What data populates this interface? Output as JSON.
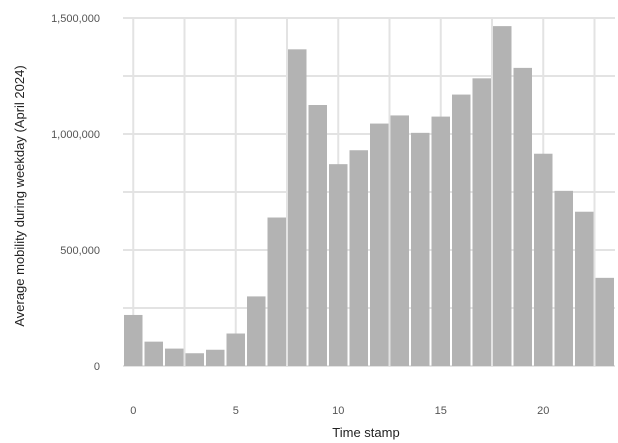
{
  "chart_data": {
    "type": "bar",
    "title": "",
    "xlabel": "Time stamp",
    "ylabel": "Average mobility during weekday (April 2024)",
    "x": [
      0,
      1,
      2,
      3,
      4,
      5,
      6,
      7,
      8,
      9,
      10,
      11,
      12,
      13,
      14,
      15,
      16,
      17,
      18,
      19,
      20,
      21,
      22,
      23
    ],
    "values": [
      220000,
      105000,
      75000,
      55000,
      70000,
      140000,
      300000,
      640000,
      1365000,
      1125000,
      870000,
      930000,
      1045000,
      1080000,
      1005000,
      1075000,
      1170000,
      1240000,
      1465000,
      1285000,
      915000,
      755000,
      665000,
      380000
    ],
    "xlim": [
      -0.5,
      23.5
    ],
    "ylim": [
      0,
      1500000
    ],
    "x_ticks": [
      0,
      5,
      10,
      15,
      20
    ],
    "x_tick_labels": [
      "0",
      "5",
      "10",
      "15",
      "20"
    ],
    "y_ticks": [
      0,
      500000,
      1000000,
      1500000
    ],
    "y_tick_labels": [
      "0",
      "500,000",
      "1,000,000",
      "1,500,000"
    ],
    "grid": true,
    "legend": "none",
    "colors": {
      "bar": "#b3b3b3",
      "grid": "#e3e3e3",
      "background": "#ffffff"
    }
  }
}
